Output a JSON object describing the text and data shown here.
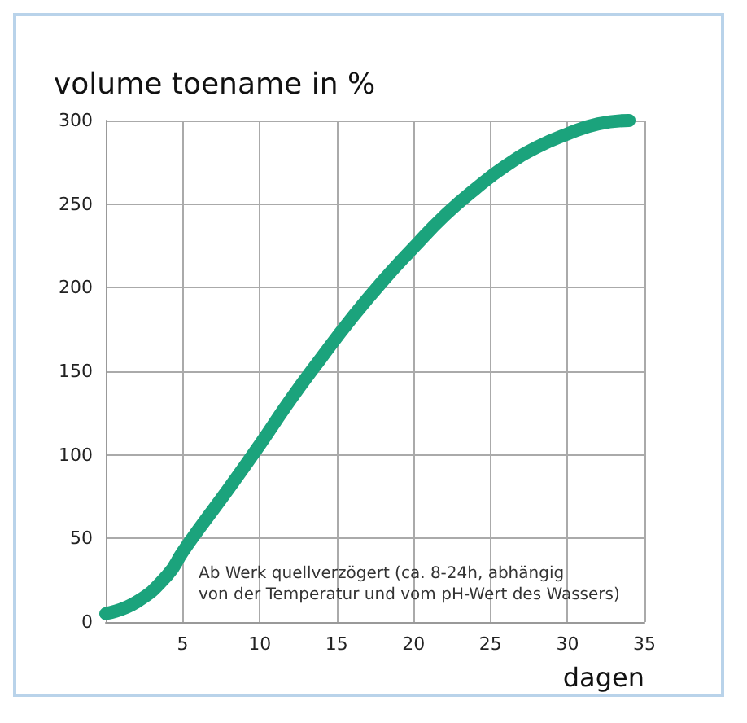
{
  "chart_data": {
    "type": "line",
    "title": "volume toename in %",
    "xlabel": "dagen",
    "annotations": [
      "Ab Werk quellverzögert (ca. 8-24h, abhängig\nvon der Temperatur und vom pH-Wert des Wassers)"
    ],
    "x": [
      0,
      2,
      4,
      5,
      6,
      8,
      10,
      12,
      14,
      16,
      18,
      20,
      22,
      24,
      26,
      28,
      30,
      32,
      34
    ],
    "series": [
      {
        "color": "#1ba37c",
        "values": [
          5,
          12,
          28,
          42,
          55,
          80,
          106,
          133,
          158,
          182,
          204,
          224,
          243,
          259,
          273,
          284,
          292,
          298,
          300
        ]
      }
    ],
    "xlim": [
      0,
      35
    ],
    "xticks": [
      5,
      10,
      15,
      20,
      25,
      30,
      35
    ],
    "ylim": [
      0,
      300
    ],
    "yticks": [
      0,
      50,
      100,
      150,
      200,
      250,
      300
    ],
    "grid": true,
    "line_style": "solid"
  }
}
